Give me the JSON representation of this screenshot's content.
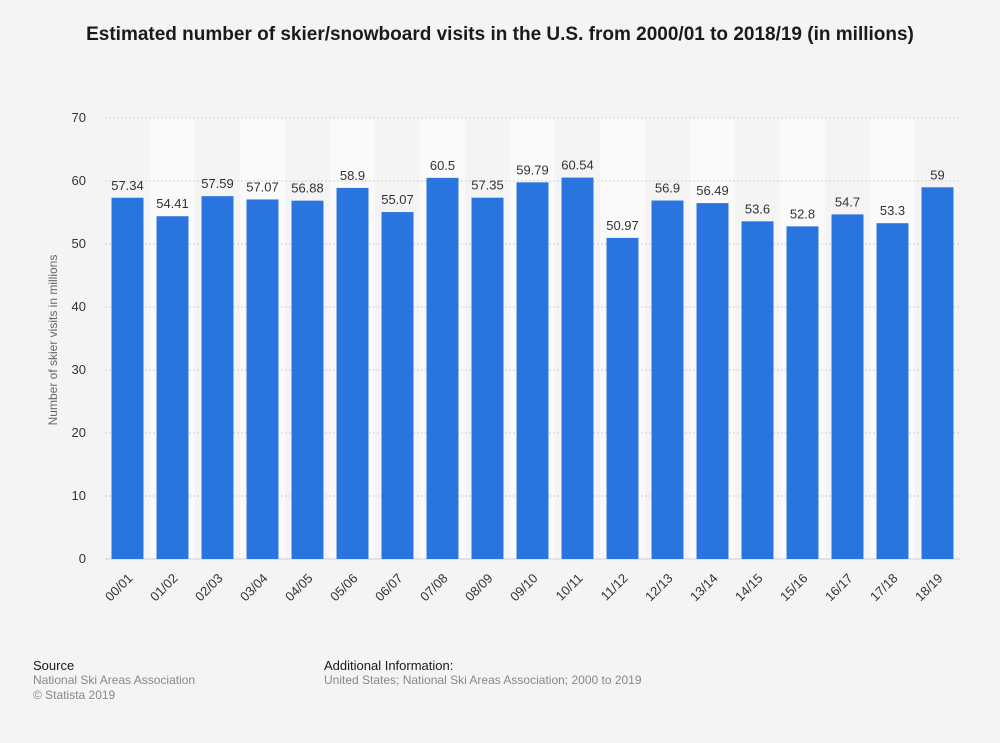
{
  "chart_data": {
    "type": "bar",
    "title": "Estimated number of skier/snowboard visits in the U.S. from 2000/01 to 2018/19 (in millions)",
    "ylabel": "Number of skier visits in millions",
    "ylim": [
      0,
      70
    ],
    "yticks": [
      "0",
      "10",
      "20",
      "30",
      "40",
      "50",
      "60",
      "70"
    ],
    "grid": true,
    "categories": [
      "00/01",
      "01/02",
      "02/03",
      "03/04",
      "04/05",
      "05/06",
      "06/07",
      "07/08",
      "08/09",
      "09/10",
      "10/11",
      "11/12",
      "12/13",
      "13/14",
      "14/15",
      "15/16",
      "16/17",
      "17/18",
      "18/19"
    ],
    "values": [
      57.34,
      54.41,
      57.59,
      57.07,
      56.88,
      58.9,
      55.07,
      60.5,
      57.35,
      59.79,
      60.54,
      50.97,
      56.9,
      56.49,
      53.6,
      52.8,
      54.7,
      53.3,
      59
    ],
    "value_labels": [
      "57.34",
      "54.41",
      "57.59",
      "57.07",
      "56.88",
      "58.9",
      "55.07",
      "60.5",
      "57.35",
      "59.79",
      "60.54",
      "50.97",
      "56.9",
      "56.49",
      "53.6",
      "52.8",
      "54.7",
      "53.3",
      "59"
    ],
    "bar_color": "#2a74e0"
  },
  "footer": {
    "source_heading": "Source",
    "source_line1": "National Ski Areas Association",
    "source_line2": "© Statista 2019",
    "info_heading": "Additional Information:",
    "info_line1": "United States; National Ski Areas Association; 2000 to 2019"
  }
}
